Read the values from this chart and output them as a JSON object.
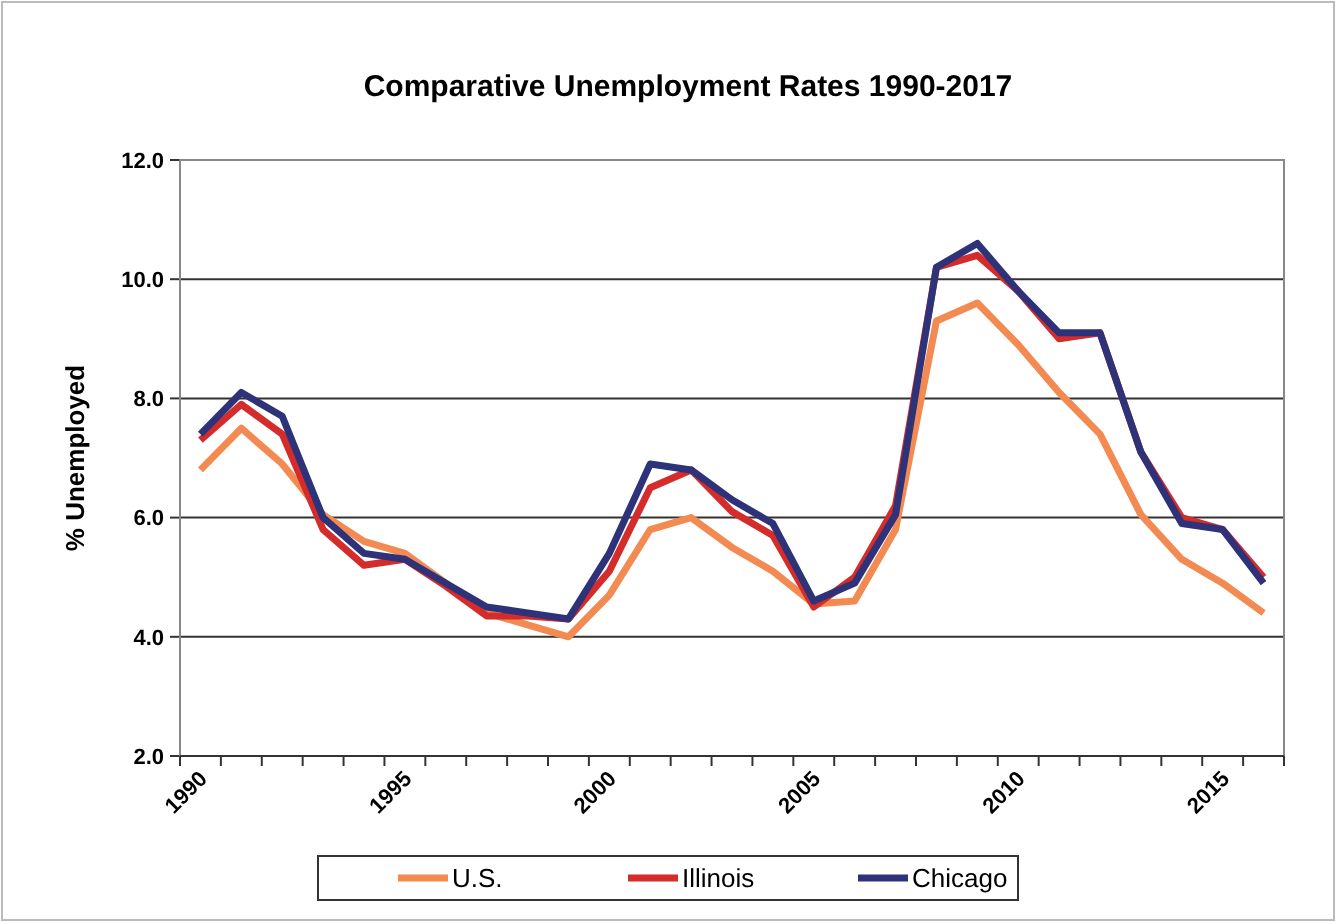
{
  "chart_data": {
    "type": "line",
    "title": "Comparative Unemployment Rates 1990-2017",
    "ylabel": "% Unemployed",
    "categories": [
      "1990",
      null,
      null,
      null,
      null,
      "1995",
      null,
      null,
      null,
      null,
      "2000",
      null,
      null,
      null,
      null,
      "2005",
      null,
      null,
      null,
      null,
      "2010",
      null,
      null,
      null,
      null,
      "2015",
      null
    ],
    "series": [
      {
        "name": "U.S.",
        "color": "#f28a52",
        "values": [
          6.8,
          7.5,
          6.9,
          6.05,
          5.6,
          5.4,
          4.9,
          4.4,
          4.2,
          4.0,
          4.7,
          5.8,
          6.0,
          5.5,
          5.1,
          4.55,
          4.6,
          5.8,
          9.3,
          9.6,
          8.9,
          8.1,
          7.4,
          6.05,
          5.3,
          4.9,
          4.4
        ]
      },
      {
        "name": "Illinois",
        "color": "#d42b2b",
        "values": [
          7.3,
          7.9,
          7.4,
          5.8,
          5.2,
          5.3,
          4.85,
          4.35,
          4.35,
          4.3,
          5.1,
          6.5,
          6.8,
          6.1,
          5.7,
          4.5,
          5.0,
          6.2,
          10.2,
          10.4,
          9.8,
          9.0,
          9.1,
          7.1,
          6.0,
          5.8,
          5.0
        ]
      },
      {
        "name": "Chicago",
        "color": "#2e3278",
        "values": [
          7.4,
          8.1,
          7.7,
          6.0,
          5.4,
          5.3,
          4.9,
          4.5,
          4.4,
          4.3,
          5.4,
          6.9,
          6.8,
          6.3,
          5.9,
          4.6,
          4.9,
          6.05,
          10.2,
          10.6,
          9.8,
          9.1,
          9.1,
          7.1,
          5.9,
          5.8,
          4.9
        ]
      }
    ],
    "ylim": [
      2,
      12
    ],
    "yticks": [
      {
        "value": 2,
        "label": "2.0"
      },
      {
        "value": 4,
        "label": "4.0"
      },
      {
        "value": 6,
        "label": "6.0"
      },
      {
        "value": 8,
        "label": "8.0"
      },
      {
        "value": 10,
        "label": "10.0"
      },
      {
        "value": 12,
        "label": "12.0"
      }
    ],
    "grid": "y",
    "legend": "bottom",
    "marker": "none",
    "line_style": "solid"
  }
}
